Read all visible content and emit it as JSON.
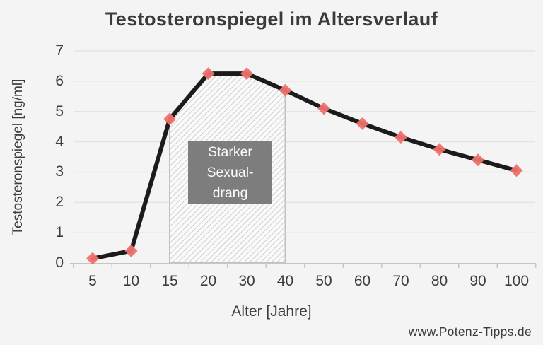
{
  "page": {
    "background": "#f5f4f5",
    "watermark": "www.Potenz-Tipps.de"
  },
  "chart_data": {
    "type": "line",
    "title": "Testosteronspiegel im Altersverlauf",
    "xlabel": "Alter [Jahre]",
    "ylabel": "Testosteronspiegel [ng/ml]",
    "categories": [
      "5",
      "10",
      "15",
      "20",
      "30",
      "40",
      "50",
      "60",
      "70",
      "80",
      "90",
      "100"
    ],
    "values": [
      0.15,
      0.4,
      4.75,
      6.25,
      6.25,
      5.7,
      5.1,
      4.6,
      4.15,
      3.75,
      3.4,
      3.05
    ],
    "y_ticks": [
      0,
      1,
      2,
      3,
      4,
      5,
      6,
      7
    ],
    "ylim": [
      0,
      7
    ],
    "grid": true,
    "legend": "none",
    "line_color": "#1b1b1b",
    "marker": "diamond",
    "marker_color": "#ee716e",
    "annotation": {
      "lines": [
        "Starker",
        "Sexual-",
        "drang"
      ],
      "x_range": [
        "15",
        "40"
      ],
      "hatch": true,
      "box_color": "#747474",
      "text_color": "#ffffff"
    }
  }
}
